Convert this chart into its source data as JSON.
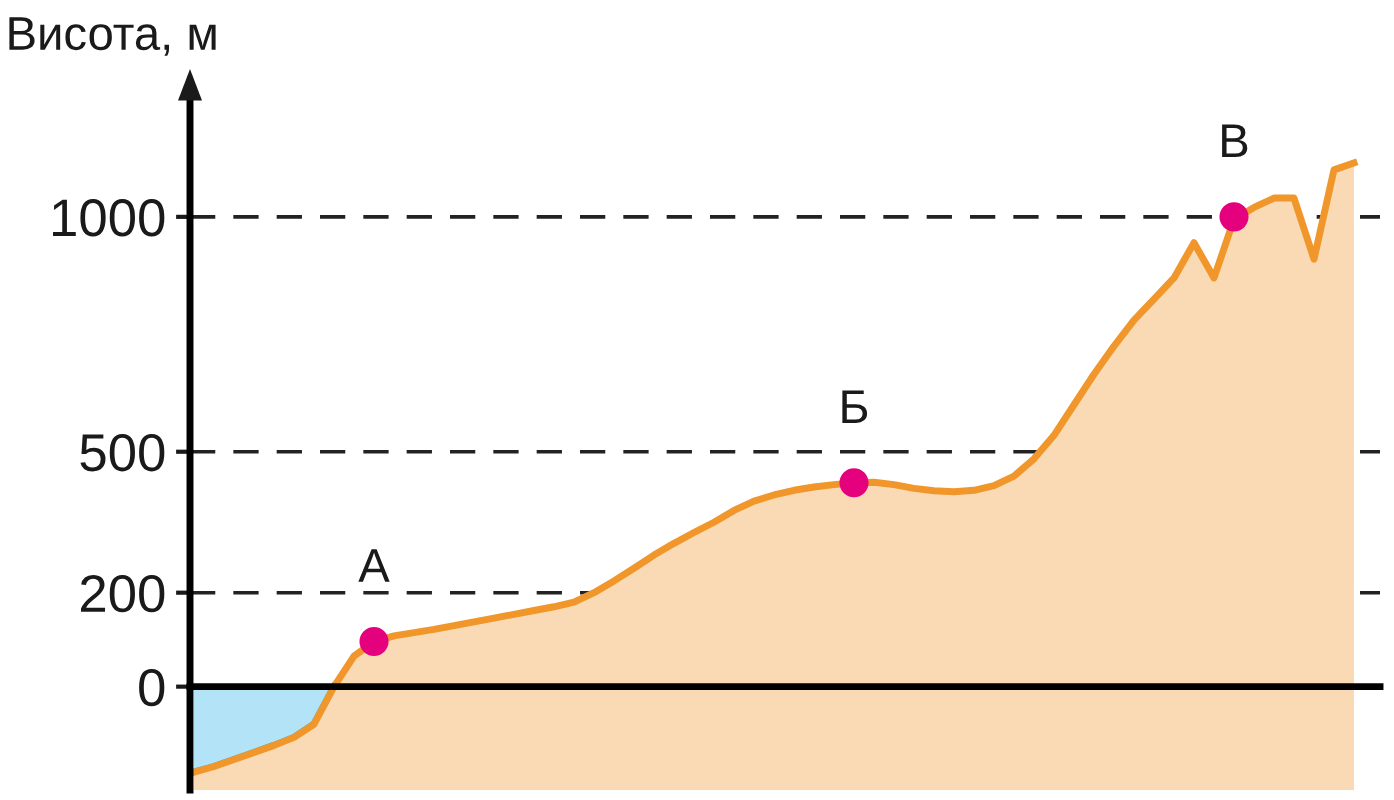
{
  "chart_data": {
    "type": "line",
    "ylabel": "Висота, м",
    "categories": [
      null,
      null,
      null,
      null,
      null,
      null,
      null,
      null,
      null,
      null,
      null,
      null,
      null,
      null,
      null,
      null,
      null,
      null,
      null,
      null,
      null,
      null,
      null,
      null,
      null,
      null,
      null,
      null,
      null,
      null,
      null,
      null,
      null,
      null,
      null,
      null,
      null,
      null,
      null,
      null,
      null,
      null,
      null,
      null,
      null,
      null,
      null,
      null,
      null,
      null,
      null,
      null,
      null,
      null,
      null,
      null,
      null,
      null,
      null
    ],
    "series": [
      {
        "type": "area",
        "color": "#26afe8",
        "values": [
          -182,
          -170,
          -155,
          -140,
          -125,
          -108,
          -80,
          0,
          null,
          null,
          null,
          null,
          null,
          null,
          null,
          null,
          null,
          null,
          null,
          null,
          null,
          null,
          null,
          null,
          null,
          null,
          null,
          null,
          null,
          null,
          null,
          null,
          null,
          null,
          null,
          null,
          null,
          null,
          null,
          null,
          null,
          null,
          null,
          null,
          null,
          null,
          null,
          null,
          null,
          null,
          null,
          null,
          null,
          null,
          null,
          null,
          null,
          null,
          null
        ]
      },
      {
        "color": "#f0962a",
        "values": [
          -182,
          -170,
          -155,
          -140,
          -125,
          -108,
          -80,
          0,
          65,
          96,
          108,
          115,
          122,
          130,
          138,
          146,
          154,
          162,
          170,
          180,
          200,
          225,
          252,
          280,
          305,
          328,
          350,
          375,
          395,
          408,
          418,
          425,
          430,
          434,
          435,
          430,
          422,
          417,
          415,
          418,
          428,
          448,
          485,
          535,
          600,
          665,
          725,
          780,
          825,
          870,
          945,
          870,
          995,
          1020,
          1040,
          1040,
          910,
          1100,
          1115
        ],
        "lower": [
          -220,
          -220,
          -220,
          -220,
          -220,
          -220,
          -220,
          -220,
          -220,
          -220,
          -220,
          -220,
          -220,
          -220,
          -220,
          -220,
          -220,
          -220,
          -220,
          -220,
          -220,
          -220,
          -220,
          -220,
          -220,
          -220,
          -220,
          -220,
          -220,
          -220,
          -220,
          -220,
          -220,
          -220,
          -220,
          -220,
          -220,
          -220,
          -220,
          -220,
          -220,
          -220,
          -220,
          -220,
          -220,
          -220,
          -220,
          -220,
          -220,
          -220,
          -220,
          -220,
          -220,
          -220,
          -220,
          -220,
          -220,
          -220,
          -220
        ],
        "upper": [
          -182,
          -170,
          -155,
          -140,
          -125,
          -108,
          -80,
          0,
          65,
          96,
          108,
          115,
          122,
          130,
          138,
          146,
          154,
          162,
          170,
          180,
          200,
          225,
          252,
          280,
          305,
          328,
          350,
          375,
          395,
          408,
          418,
          425,
          430,
          434,
          435,
          430,
          422,
          417,
          415,
          418,
          428,
          448,
          485,
          535,
          600,
          665,
          725,
          780,
          825,
          870,
          945,
          870,
          995,
          1020,
          1040,
          1040,
          910,
          1100,
          1115
        ]
      },
      {
        "type": "scatter",
        "color": "#e5007e",
        "marker": "circle",
        "values": [
          null,
          null,
          null,
          null,
          null,
          null,
          null,
          null,
          null,
          96,
          null,
          null,
          null,
          null,
          null,
          null,
          null,
          null,
          null,
          null,
          null,
          null,
          null,
          null,
          null,
          null,
          null,
          null,
          null,
          null,
          null,
          null,
          null,
          434,
          null,
          null,
          null,
          null,
          null,
          null,
          null,
          null,
          null,
          null,
          null,
          null,
          null,
          null,
          null,
          null,
          null,
          null,
          1000,
          null,
          null,
          null,
          null,
          null,
          null
        ],
        "value_labels": [
          null,
          null,
          null,
          null,
          null,
          null,
          null,
          null,
          null,
          "А",
          null,
          null,
          null,
          null,
          null,
          null,
          null,
          null,
          null,
          null,
          null,
          null,
          null,
          null,
          null,
          null,
          null,
          null,
          null,
          null,
          null,
          null,
          null,
          "Б",
          null,
          null,
          null,
          null,
          null,
          null,
          null,
          null,
          null,
          null,
          null,
          null,
          null,
          null,
          null,
          null,
          null,
          null,
          "В",
          null,
          null,
          null,
          null,
          null,
          null
        ]
      }
    ],
    "ylim": [
      -220,
      1270
    ],
    "yticks": [
      0,
      200,
      500,
      1000
    ],
    "grid": "y",
    "line_style": "solid",
    "tick_labels": "y"
  }
}
